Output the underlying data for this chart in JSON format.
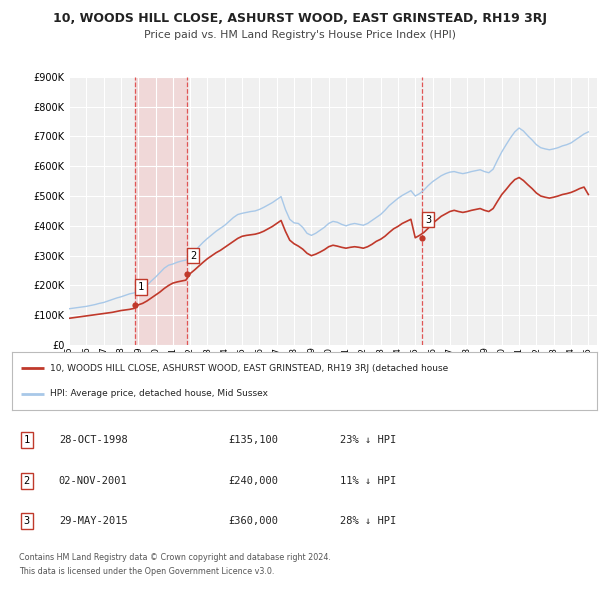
{
  "title": "10, WOODS HILL CLOSE, ASHURST WOOD, EAST GRINSTEAD, RH19 3RJ",
  "subtitle": "Price paid vs. HM Land Registry's House Price Index (HPI)",
  "ylim": [
    0,
    900000
  ],
  "yticks": [
    0,
    100000,
    200000,
    300000,
    400000,
    500000,
    600000,
    700000,
    800000,
    900000
  ],
  "ytick_labels": [
    "£0",
    "£100K",
    "£200K",
    "£300K",
    "£400K",
    "£500K",
    "£600K",
    "£700K",
    "£800K",
    "£900K"
  ],
  "xlim_start": 1995.0,
  "xlim_end": 2025.5,
  "xticks": [
    1995,
    1996,
    1997,
    1998,
    1999,
    2000,
    2001,
    2002,
    2003,
    2004,
    2005,
    2006,
    2007,
    2008,
    2009,
    2010,
    2011,
    2012,
    2013,
    2014,
    2015,
    2016,
    2017,
    2018,
    2019,
    2020,
    2021,
    2022,
    2023,
    2024,
    2025
  ],
  "bg_color": "#ffffff",
  "plot_bg_color": "#f0f0f0",
  "grid_color": "#ffffff",
  "hpi_color": "#a8c8e8",
  "property_color": "#c0392b",
  "sale_marker_color": "#c0392b",
  "vline_color": "#e05555",
  "vband_color": "#f0d8d8",
  "legend_line1": "10, WOODS HILL CLOSE, ASHURST WOOD, EAST GRINSTEAD, RH19 3RJ (detached house",
  "legend_line2": "HPI: Average price, detached house, Mid Sussex",
  "footer1": "Contains HM Land Registry data © Crown copyright and database right 2024.",
  "footer2": "This data is licensed under the Open Government Licence v3.0.",
  "sales": [
    {
      "num": 1,
      "date_year": 1998.83,
      "price": 135100,
      "label": "28-OCT-1998",
      "price_str": "£135,100",
      "pct": "23% ↓ HPI"
    },
    {
      "num": 2,
      "date_year": 2001.84,
      "price": 240000,
      "label": "02-NOV-2001",
      "price_str": "£240,000",
      "pct": "11% ↓ HPI"
    },
    {
      "num": 3,
      "date_year": 2015.41,
      "price": 360000,
      "label": "29-MAY-2015",
      "price_str": "£360,000",
      "pct": "28% ↓ HPI"
    }
  ],
  "hpi_data_x": [
    1995.0,
    1995.25,
    1995.5,
    1995.75,
    1996.0,
    1996.25,
    1996.5,
    1996.75,
    1997.0,
    1997.25,
    1997.5,
    1997.75,
    1998.0,
    1998.25,
    1998.5,
    1998.75,
    1999.0,
    1999.25,
    1999.5,
    1999.75,
    2000.0,
    2000.25,
    2000.5,
    2000.75,
    2001.0,
    2001.25,
    2001.5,
    2001.75,
    2002.0,
    2002.25,
    2002.5,
    2002.75,
    2003.0,
    2003.25,
    2003.5,
    2003.75,
    2004.0,
    2004.25,
    2004.5,
    2004.75,
    2005.0,
    2005.25,
    2005.5,
    2005.75,
    2006.0,
    2006.25,
    2006.5,
    2006.75,
    2007.0,
    2007.25,
    2007.5,
    2007.75,
    2008.0,
    2008.25,
    2008.5,
    2008.75,
    2009.0,
    2009.25,
    2009.5,
    2009.75,
    2010.0,
    2010.25,
    2010.5,
    2010.75,
    2011.0,
    2011.25,
    2011.5,
    2011.75,
    2012.0,
    2012.25,
    2012.5,
    2012.75,
    2013.0,
    2013.25,
    2013.5,
    2013.75,
    2014.0,
    2014.25,
    2014.5,
    2014.75,
    2015.0,
    2015.25,
    2015.5,
    2015.75,
    2016.0,
    2016.25,
    2016.5,
    2016.75,
    2017.0,
    2017.25,
    2017.5,
    2017.75,
    2018.0,
    2018.25,
    2018.5,
    2018.75,
    2019.0,
    2019.25,
    2019.5,
    2019.75,
    2020.0,
    2020.25,
    2020.5,
    2020.75,
    2021.0,
    2021.25,
    2021.5,
    2021.75,
    2022.0,
    2022.25,
    2022.5,
    2022.75,
    2023.0,
    2023.25,
    2023.5,
    2023.75,
    2024.0,
    2024.25,
    2024.5,
    2024.75,
    2025.0
  ],
  "hpi_data_y": [
    122000,
    124000,
    126000,
    128000,
    130000,
    133000,
    136000,
    140000,
    143000,
    148000,
    153000,
    158000,
    162000,
    167000,
    172000,
    175000,
    179000,
    188000,
    200000,
    215000,
    228000,
    243000,
    258000,
    268000,
    272000,
    278000,
    282000,
    285000,
    295000,
    313000,
    330000,
    345000,
    358000,
    370000,
    382000,
    392000,
    402000,
    415000,
    428000,
    438000,
    442000,
    445000,
    448000,
    450000,
    455000,
    462000,
    470000,
    478000,
    488000,
    498000,
    455000,
    422000,
    410000,
    408000,
    395000,
    375000,
    368000,
    375000,
    385000,
    395000,
    408000,
    415000,
    412000,
    405000,
    400000,
    405000,
    408000,
    405000,
    402000,
    408000,
    418000,
    428000,
    438000,
    452000,
    468000,
    480000,
    492000,
    502000,
    510000,
    518000,
    500000,
    508000,
    520000,
    535000,
    548000,
    558000,
    568000,
    575000,
    580000,
    582000,
    578000,
    575000,
    578000,
    582000,
    585000,
    588000,
    582000,
    578000,
    590000,
    620000,
    648000,
    672000,
    695000,
    715000,
    728000,
    718000,
    702000,
    688000,
    672000,
    662000,
    658000,
    655000,
    658000,
    662000,
    668000,
    672000,
    678000,
    688000,
    698000,
    708000,
    715000
  ],
  "property_data_x": [
    1995.0,
    1995.25,
    1995.5,
    1995.75,
    1996.0,
    1996.25,
    1996.5,
    1996.75,
    1997.0,
    1997.25,
    1997.5,
    1997.75,
    1998.0,
    1998.25,
    1998.5,
    1998.75,
    1999.0,
    1999.25,
    1999.5,
    1999.75,
    2000.0,
    2000.25,
    2000.5,
    2000.75,
    2001.0,
    2001.25,
    2001.5,
    2001.75,
    2002.0,
    2002.25,
    2002.5,
    2002.75,
    2003.0,
    2003.25,
    2003.5,
    2003.75,
    2004.0,
    2004.25,
    2004.5,
    2004.75,
    2005.0,
    2005.25,
    2005.5,
    2005.75,
    2006.0,
    2006.25,
    2006.5,
    2006.75,
    2007.0,
    2007.25,
    2007.5,
    2007.75,
    2008.0,
    2008.25,
    2008.5,
    2008.75,
    2009.0,
    2009.25,
    2009.5,
    2009.75,
    2010.0,
    2010.25,
    2010.5,
    2010.75,
    2011.0,
    2011.25,
    2011.5,
    2011.75,
    2012.0,
    2012.25,
    2012.5,
    2012.75,
    2013.0,
    2013.25,
    2013.5,
    2013.75,
    2014.0,
    2014.25,
    2014.5,
    2014.75,
    2015.0,
    2015.25,
    2015.5,
    2015.75,
    2016.0,
    2016.25,
    2016.5,
    2016.75,
    2017.0,
    2017.25,
    2017.5,
    2017.75,
    2018.0,
    2018.25,
    2018.5,
    2018.75,
    2019.0,
    2019.25,
    2019.5,
    2019.75,
    2020.0,
    2020.25,
    2020.5,
    2020.75,
    2021.0,
    2021.25,
    2021.5,
    2021.75,
    2022.0,
    2022.25,
    2022.5,
    2022.75,
    2023.0,
    2023.25,
    2023.5,
    2023.75,
    2024.0,
    2024.25,
    2024.5,
    2024.75,
    2025.0
  ],
  "property_data_y": [
    90000,
    92000,
    94000,
    96000,
    98000,
    100000,
    102000,
    104000,
    106000,
    108000,
    110000,
    113000,
    116000,
    118000,
    120000,
    123000,
    135100,
    140000,
    148000,
    158000,
    168000,
    178000,
    190000,
    200000,
    208000,
    212000,
    215000,
    218000,
    240000,
    252000,
    265000,
    278000,
    290000,
    300000,
    310000,
    318000,
    328000,
    338000,
    348000,
    358000,
    365000,
    368000,
    370000,
    372000,
    376000,
    382000,
    390000,
    398000,
    408000,
    418000,
    382000,
    352000,
    340000,
    332000,
    322000,
    308000,
    300000,
    305000,
    312000,
    320000,
    330000,
    335000,
    332000,
    328000,
    325000,
    328000,
    330000,
    328000,
    325000,
    330000,
    338000,
    348000,
    355000,
    365000,
    378000,
    390000,
    398000,
    408000,
    415000,
    422000,
    360000,
    368000,
    378000,
    392000,
    408000,
    420000,
    432000,
    440000,
    448000,
    452000,
    448000,
    445000,
    448000,
    452000,
    455000,
    458000,
    452000,
    448000,
    458000,
    482000,
    505000,
    522000,
    540000,
    555000,
    562000,
    552000,
    538000,
    525000,
    510000,
    500000,
    496000,
    493000,
    496000,
    500000,
    505000,
    508000,
    512000,
    518000,
    525000,
    530000,
    505000
  ]
}
